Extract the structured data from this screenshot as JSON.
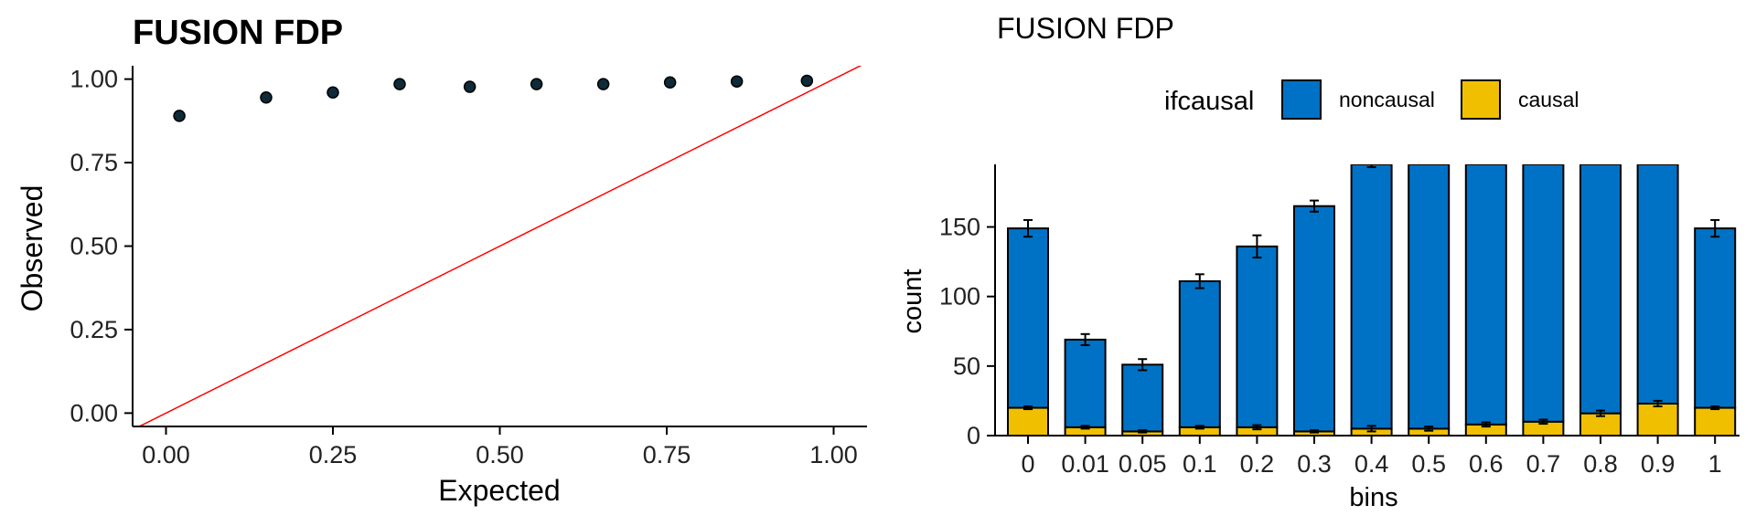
{
  "chart_data": [
    {
      "type": "scatter",
      "title": "FUSION FDP",
      "xlabel": "Expected",
      "ylabel": "Observed",
      "xlim": [
        -0.05,
        1.05
      ],
      "ylim": [
        -0.04,
        1.04
      ],
      "x_ticks": [
        "0.00",
        "0.25",
        "0.50",
        "0.75",
        "1.00"
      ],
      "y_ticks": [
        "0.00",
        "0.25",
        "0.50",
        "0.75",
        "1.00"
      ],
      "points": [
        {
          "x": 0.02,
          "y": 0.89
        },
        {
          "x": 0.15,
          "y": 0.945
        },
        {
          "x": 0.25,
          "y": 0.96
        },
        {
          "x": 0.35,
          "y": 0.985
        },
        {
          "x": 0.455,
          "y": 0.977
        },
        {
          "x": 0.555,
          "y": 0.985
        },
        {
          "x": 0.655,
          "y": 0.985
        },
        {
          "x": 0.755,
          "y": 0.99
        },
        {
          "x": 0.855,
          "y": 0.993
        },
        {
          "x": 0.96,
          "y": 0.995
        }
      ],
      "reference_line": {
        "slope": 1,
        "intercept": 0,
        "color": "#ff0000"
      },
      "point_color": "#0f2a38",
      "grid": false
    },
    {
      "type": "bar",
      "stacked": true,
      "title": "FUSION FDP",
      "xlabel": "bins",
      "ylabel": "count",
      "ylim": [
        0,
        195
      ],
      "y_ticks": [
        0,
        50,
        100,
        150
      ],
      "categories": [
        "0",
        "0.01",
        "0.05",
        "0.1",
        "0.2",
        "0.3",
        "0.4",
        "0.5",
        "0.6",
        "0.7",
        "0.8",
        "0.9",
        "1"
      ],
      "legend": {
        "title": "ifcausal",
        "position": "top",
        "entries": [
          {
            "label": "noncausal",
            "color": "#0072c6"
          },
          {
            "label": "causal",
            "color": "#f0c000"
          }
        ]
      },
      "series": [
        {
          "name": "causal",
          "color": "#f0c000",
          "values": [
            20,
            6,
            3,
            6,
            6,
            3,
            5,
            5,
            8,
            10,
            16,
            23,
            20
          ],
          "error": [
            1,
            1,
            0.8,
            1,
            1.5,
            0.8,
            2,
            1.5,
            1.5,
            1.5,
            2,
            2,
            1
          ]
        },
        {
          "name": "noncausal",
          "color": "#0072c6",
          "values": [
            129,
            63,
            48,
            105,
            130,
            162,
            190,
            190,
            187,
            185,
            179,
            172,
            129
          ],
          "total_error": [
            6,
            4,
            4,
            5,
            8,
            4,
            2,
            0,
            0,
            0,
            0,
            0,
            6
          ]
        }
      ]
    }
  ]
}
